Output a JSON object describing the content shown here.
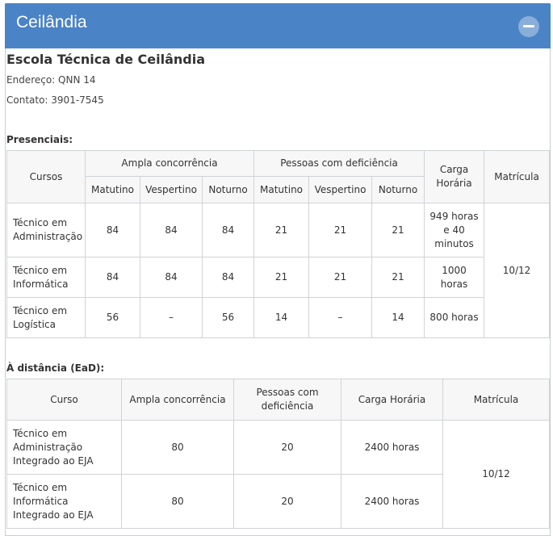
{
  "header": {
    "title": "Ceilândia"
  },
  "school": {
    "name": "Escola Técnica de Ceilândia",
    "address": "Endereço: QNN 14",
    "contact": "Contato: 3901-7545"
  },
  "presencial": {
    "label": "Presenciais:",
    "headers": {
      "cursos": "Cursos",
      "ampla": "Ampla concorrência",
      "pcd": "Pessoas com deficiência",
      "carga": "Carga Horária",
      "matricula": "Matrícula",
      "matutino": "Matutino",
      "vespertino": "Vespertino",
      "noturno": "Noturno"
    },
    "rows": [
      {
        "curso": "Técnico em Administração",
        "a_mat": "84",
        "a_ves": "84",
        "a_not": "84",
        "p_mat": "21",
        "p_ves": "21",
        "p_not": "21",
        "carga": "949 horas e 40 minutos"
      },
      {
        "curso": "Técnico em Informática",
        "a_mat": "84",
        "a_ves": "84",
        "a_not": "84",
        "p_mat": "21",
        "p_ves": "21",
        "p_not": "21",
        "carga": "1000 horas"
      },
      {
        "curso": "Técnico em Logística",
        "a_mat": "56",
        "a_ves": "–",
        "a_not": "56",
        "p_mat": "14",
        "p_ves": "–",
        "p_not": "14",
        "carga": "800 horas"
      }
    ],
    "matricula": "10/12"
  },
  "ead": {
    "label": "À distância (EaD):",
    "headers": {
      "curso": "Curso",
      "ampla": "Ampla concorrência",
      "pcd": "Pessoas com deficiência",
      "carga": "Carga Horária",
      "matricula": "Matrícula"
    },
    "rows": [
      {
        "curso": "Técnico em Administração Integrado ao EJA",
        "ampla": "80",
        "pcd": "20",
        "carga": "2400 horas"
      },
      {
        "curso": "Técnico em Informática Integrado ao EJA",
        "ampla": "80",
        "pcd": "20",
        "carga": "2400 horas"
      }
    ],
    "matricula": "10/12"
  }
}
